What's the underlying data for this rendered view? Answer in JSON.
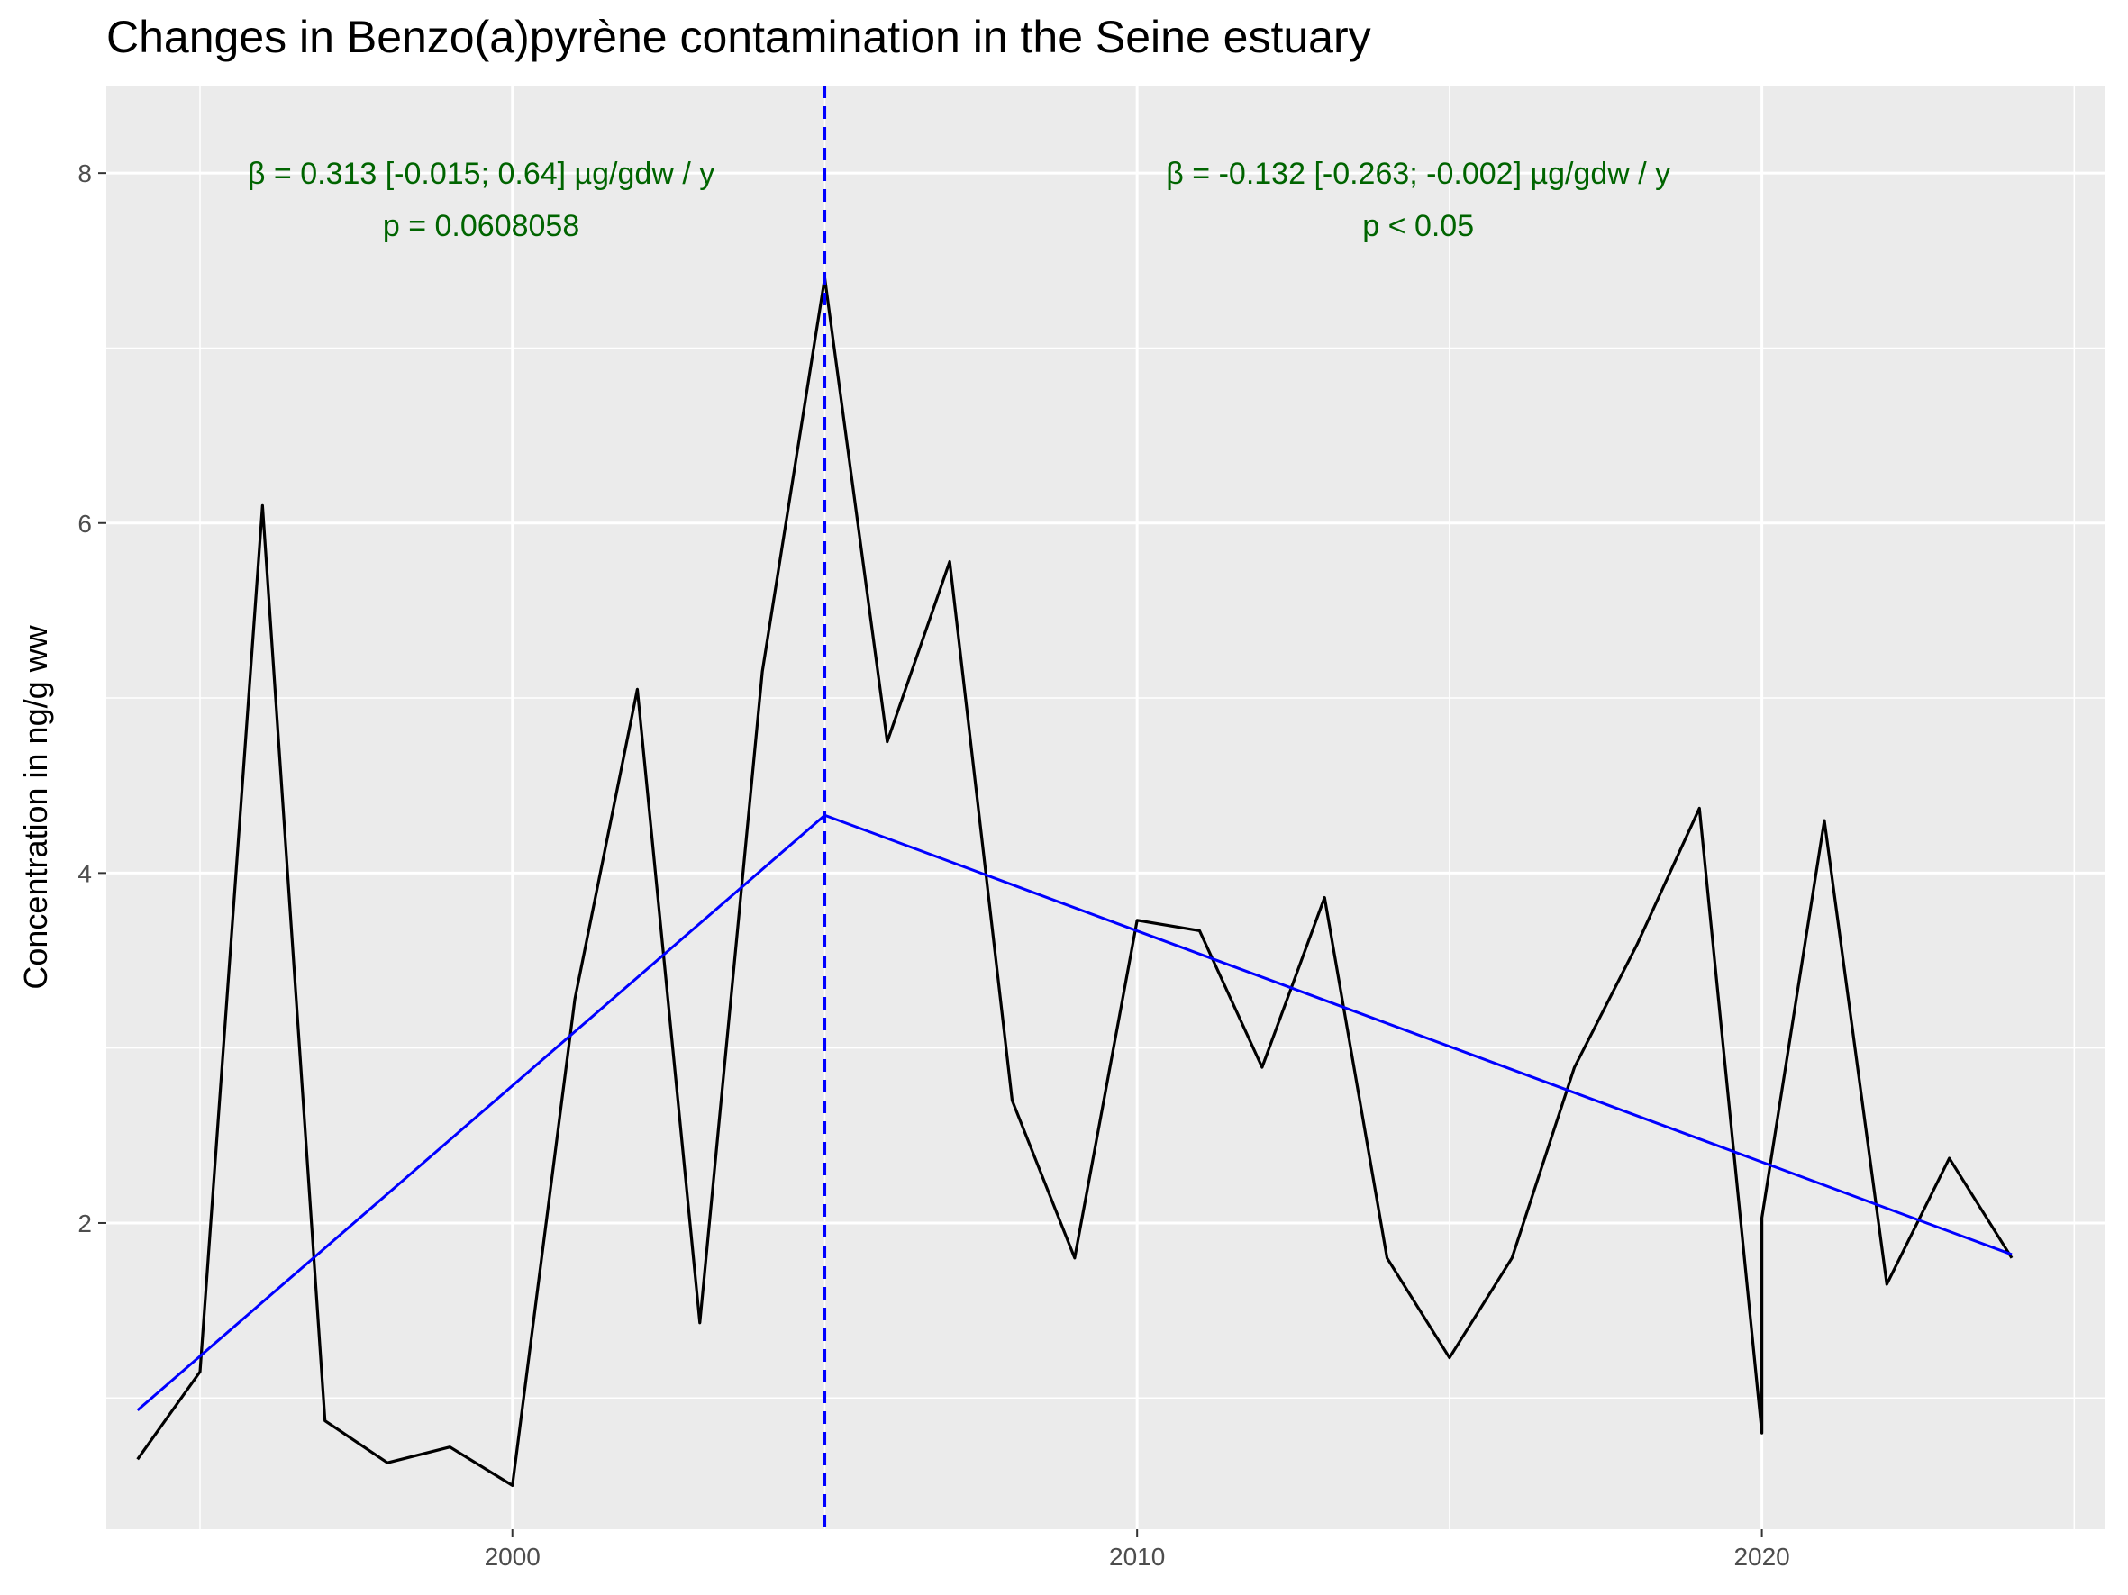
{
  "title": "Changes in Benzo(a)pyrène contamination in the Seine estuary",
  "colors": {
    "panel": "#ebebeb",
    "grid": "#ffffff",
    "series": "#000000",
    "trend": "#0000ff",
    "annotation": "#006400"
  },
  "chart_data": {
    "type": "line",
    "title": "Changes in Benzo(a)pyrène contamination in the Seine estuary",
    "xlabel": "",
    "ylabel": "Concentration in ng/g ww",
    "xlim": [
      1993.5,
      2025.5
    ],
    "ylim": [
      0.25,
      8.5
    ],
    "x_ticks": [
      2000,
      2010,
      2020
    ],
    "y_ticks": [
      2,
      4,
      6,
      8
    ],
    "grid": true,
    "series": [
      {
        "x": [
          1994,
          1995,
          1996,
          1997,
          1998,
          1999,
          2000,
          2001,
          2002,
          2003,
          2004,
          2005,
          2006,
          2007,
          2008,
          2009,
          2010,
          2011,
          2012,
          2013,
          2014,
          2015,
          2016,
          2017,
          2018,
          2019,
          2020,
          2020,
          2021,
          2022,
          2023,
          2024
        ],
        "y": [
          0.65,
          1.15,
          6.1,
          0.87,
          0.63,
          0.72,
          0.5,
          3.28,
          5.05,
          1.43,
          5.15,
          7.4,
          4.75,
          5.78,
          2.7,
          1.8,
          3.73,
          3.67,
          2.89,
          3.86,
          1.8,
          1.23,
          1.8,
          2.89,
          3.59,
          4.37,
          0.8,
          2.03,
          4.3,
          1.65,
          2.37,
          1.8
        ]
      },
      {
        "x": [
          1994,
          2005,
          2024
        ],
        "y": [
          0.93,
          4.33,
          1.82
        ]
      }
    ],
    "breakpoint_x": 2005,
    "annotations": [
      {
        "line1": "β = 0.313 [-0.015; 0.64] µg/gdw / y",
        "line2": "p = 0.0608058",
        "x": 1999.5,
        "y": 8.0
      },
      {
        "line1": "β = -0.132 [-0.263; -0.002] µg/gdw / y",
        "line2": "p < 0.05",
        "x": 2014.5,
        "y": 8.0
      }
    ]
  }
}
